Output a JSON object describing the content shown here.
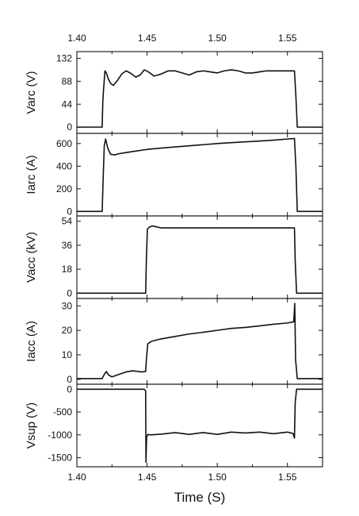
{
  "chart_data": {
    "type": "line",
    "xlabel": "Time (S)",
    "xlim": [
      1.4,
      1.575
    ],
    "xticks": [
      1.4,
      1.45,
      1.5,
      1.55
    ],
    "xtick_labels": [
      "1.40",
      "1.45",
      "1.50",
      "1.55"
    ],
    "panels": [
      {
        "ylabel": "Varc (V)",
        "ylim": [
          -12,
          145
        ],
        "yticks": [
          0,
          44,
          88,
          132
        ],
        "ytick_labels": [
          "0",
          "44",
          "88",
          "132"
        ],
        "series": [
          {
            "x": [
              1.4,
              1.418,
              1.4185,
              1.419,
              1.42,
              1.421,
              1.4225,
              1.424,
              1.426,
              1.429,
              1.432,
              1.435,
              1.438,
              1.442,
              1.445,
              1.448,
              1.451,
              1.455,
              1.46,
              1.465,
              1.47,
              1.475,
              1.48,
              1.485,
              1.49,
              1.495,
              1.5,
              1.505,
              1.51,
              1.515,
              1.52,
              1.525,
              1.53,
              1.535,
              1.54,
              1.545,
              1.55,
              1.555,
              1.556,
              1.557,
              1.575
            ],
            "y": [
              0,
              0,
              50,
              72,
              108,
              104,
              92,
              84,
              80,
              90,
              102,
              108,
              104,
              96,
              100,
              110,
              106,
              98,
              102,
              108,
              108,
              104,
              100,
              106,
              108,
              106,
              104,
              108,
              110,
              108,
              104,
              104,
              106,
              108,
              108,
              108,
              108,
              108,
              60,
              0,
              0
            ]
          }
        ]
      },
      {
        "ylabel": "Iarc (A)",
        "ylim": [
          -40,
          690
        ],
        "yticks": [
          0,
          200,
          400,
          600
        ],
        "ytick_labels": [
          "0",
          "200",
          "400",
          "600"
        ],
        "series": [
          {
            "x": [
              1.4,
              1.418,
              1.4185,
              1.4195,
              1.4205,
              1.422,
              1.424,
              1.427,
              1.43,
              1.435,
              1.44,
              1.45,
              1.46,
              1.47,
              1.48,
              1.49,
              1.5,
              1.51,
              1.52,
              1.53,
              1.54,
              1.55,
              1.555,
              1.556,
              1.557,
              1.575
            ],
            "y": [
              0,
              0,
              200,
              580,
              640,
              560,
              505,
              500,
              510,
              520,
              530,
              548,
              560,
              570,
              580,
              590,
              600,
              608,
              615,
              622,
              630,
              640,
              645,
              400,
              0,
              0
            ]
          }
        ]
      },
      {
        "ylabel": "Vacc (kV)",
        "ylim": [
          -4,
          58
        ],
        "yticks": [
          0,
          18,
          36,
          54
        ],
        "ytick_labels": [
          "0",
          "18",
          "36",
          "54"
        ],
        "series": [
          {
            "x": [
              1.4,
              1.449,
              1.4495,
              1.4502,
              1.4515,
              1.4535,
              1.456,
              1.46,
              1.48,
              1.5,
              1.52,
              1.54,
              1.555,
              1.5555,
              1.5565,
              1.575
            ],
            "y": [
              0,
              0,
              25,
              48,
              49.5,
              50.5,
              50,
              49,
              49,
              49,
              49,
              49,
              49,
              25,
              0,
              0
            ]
          }
        ]
      },
      {
        "ylabel": "Iacc (A)",
        "ylim": [
          -2,
          33
        ],
        "yticks": [
          0,
          10,
          20,
          30
        ],
        "ytick_labels": [
          "0",
          "10",
          "20",
          "30"
        ],
        "series": [
          {
            "x": [
              1.4,
              1.418,
              1.42,
              1.421,
              1.4225,
              1.425,
              1.43,
              1.435,
              1.44,
              1.446,
              1.449,
              1.4495,
              1.4505,
              1.453,
              1.46,
              1.47,
              1.48,
              1.49,
              1.5,
              1.51,
              1.52,
              1.53,
              1.54,
              1.55,
              1.5545,
              1.5552,
              1.5558,
              1.557,
              1.575
            ],
            "y": [
              0.3,
              0.3,
              2.5,
              3.2,
              1.8,
              1.0,
              2.0,
              3.0,
              3.5,
              3.0,
              3.2,
              8.0,
              14.5,
              15.5,
              16.5,
              17.5,
              18.5,
              19.2,
              20.0,
              20.8,
              21.2,
              21.8,
              22.5,
              23.0,
              23.5,
              31.0,
              8.0,
              0.3,
              0.3
            ]
          }
        ]
      },
      {
        "ylabel": "Vsup (V)",
        "ylim": [
          -1700,
          110
        ],
        "yticks": [
          0,
          -500,
          -1000,
          -1500
        ],
        "ytick_labels": [
          "0",
          "-500",
          "-1000",
          "-1500"
        ],
        "series": [
          {
            "x": [
              1.4,
              1.448,
              1.449,
              1.4492,
              1.4497,
              1.4505,
              1.452,
              1.46,
              1.47,
              1.48,
              1.49,
              1.5,
              1.51,
              1.52,
              1.53,
              1.54,
              1.55,
              1.554,
              1.555,
              1.5555,
              1.5565,
              1.56,
              1.57,
              1.575
            ],
            "y": [
              0,
              0,
              -40,
              -1600,
              -1050,
              -990,
              -1000,
              -985,
              -950,
              -990,
              -950,
              -990,
              -940,
              -960,
              -940,
              -975,
              -940,
              -970,
              -1070,
              -300,
              0,
              0,
              0,
              0
            ]
          }
        ]
      }
    ]
  }
}
